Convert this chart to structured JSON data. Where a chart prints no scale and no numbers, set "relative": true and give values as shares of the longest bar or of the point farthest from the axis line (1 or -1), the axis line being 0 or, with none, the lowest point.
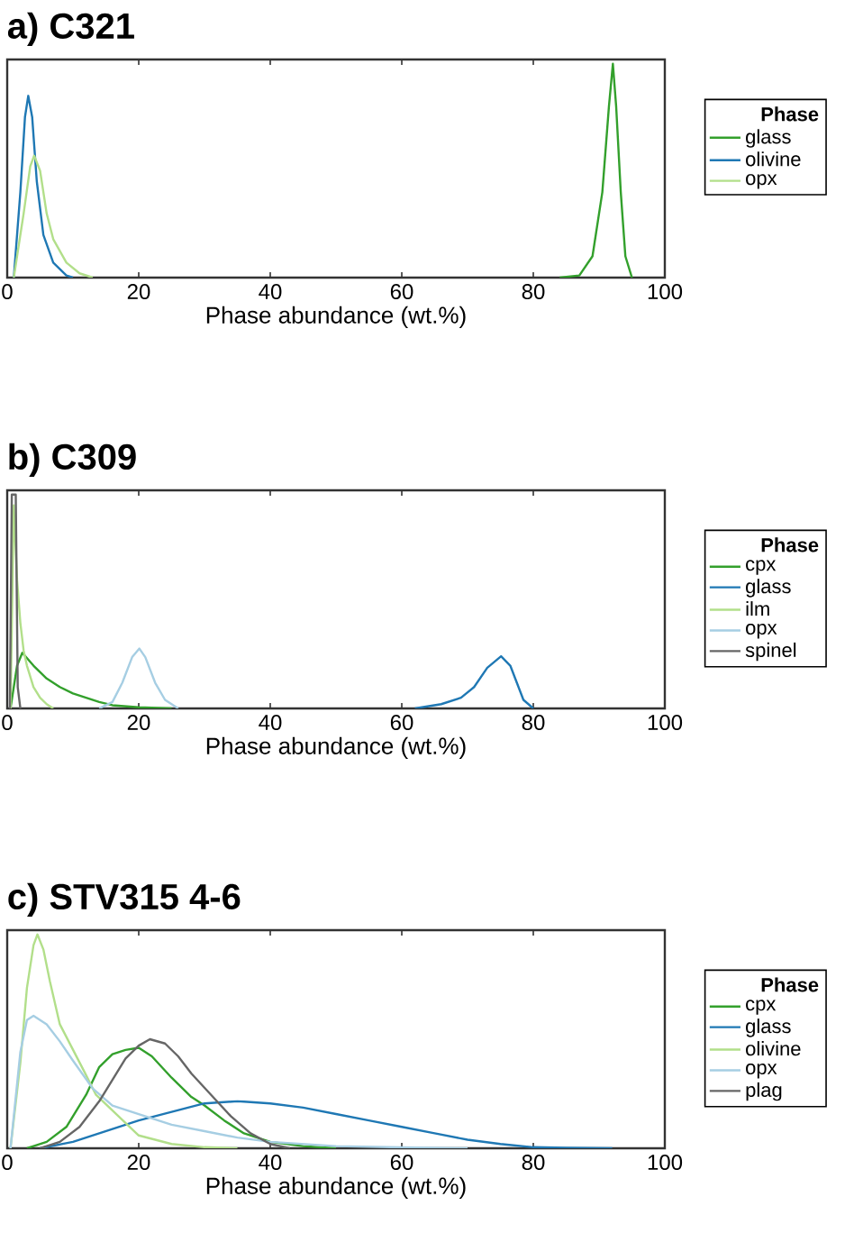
{
  "chart_data": [
    {
      "type": "line",
      "title": "a)  C321",
      "xlabel": "Phase abundance (wt.%)",
      "relative": true,
      "xlim": [
        0,
        100
      ],
      "xticks": [
        0,
        20,
        40,
        60,
        80,
        100
      ],
      "legend": "right",
      "legend_title": "Phase",
      "series": [
        {
          "name": "glass",
          "color": "#33a02c",
          "x": [
            84,
            87,
            89,
            90.5,
            91.5,
            92.1,
            92.6,
            93.3,
            94,
            95
          ],
          "values": [
            0,
            0.01,
            0.1,
            0.4,
            0.8,
            1,
            0.8,
            0.4,
            0.1,
            0
          ]
        },
        {
          "name": "olivine",
          "color": "#1f78b4",
          "x": [
            1,
            2,
            2.7,
            3.2,
            3.8,
            4.5,
            5.5,
            7,
            9,
            10
          ],
          "values": [
            0,
            0.4,
            0.75,
            0.85,
            0.75,
            0.45,
            0.2,
            0.07,
            0.01,
            0
          ]
        },
        {
          "name": "opx",
          "color": "#b2df8a",
          "x": [
            1,
            2.5,
            3.5,
            4.1,
            5,
            6,
            7,
            9,
            11,
            13
          ],
          "values": [
            0,
            0.3,
            0.52,
            0.57,
            0.5,
            0.3,
            0.18,
            0.07,
            0.02,
            0
          ]
        }
      ]
    },
    {
      "type": "line",
      "title": "b) C309",
      "xlabel": "Phase abundance (wt.%)",
      "relative": true,
      "xlim": [
        0,
        100
      ],
      "xticks": [
        0,
        20,
        40,
        60,
        80,
        100
      ],
      "legend": "right",
      "legend_title": "Phase",
      "series": [
        {
          "name": "cpx",
          "color": "#33a02c",
          "x": [
            0.5,
            1.5,
            2.3,
            4,
            6,
            8,
            10,
            12,
            14,
            16,
            20,
            25
          ],
          "values": [
            0,
            0.2,
            0.26,
            0.2,
            0.14,
            0.1,
            0.07,
            0.05,
            0.03,
            0.015,
            0.005,
            0
          ]
        },
        {
          "name": "glass",
          "color": "#1f78b4",
          "x": [
            62,
            66,
            69,
            71,
            73,
            75.1,
            76.5,
            77.5,
            78.5,
            80
          ],
          "values": [
            0,
            0.02,
            0.05,
            0.1,
            0.19,
            0.244,
            0.2,
            0.12,
            0.04,
            0
          ]
        },
        {
          "name": "ilm",
          "color": "#b2df8a",
          "x": [
            0.5,
            1,
            1.5,
            2,
            2.5,
            3,
            4,
            5,
            6,
            7
          ],
          "values": [
            0,
            0.95,
            0.6,
            0.4,
            0.27,
            0.2,
            0.1,
            0.05,
            0.02,
            0
          ]
        },
        {
          "name": "opx",
          "color": "#a6cee3",
          "x": [
            14,
            16,
            17.5,
            19,
            20.1,
            21,
            22.5,
            24,
            26
          ],
          "values": [
            0,
            0.03,
            0.12,
            0.24,
            0.28,
            0.24,
            0.12,
            0.04,
            0
          ]
        },
        {
          "name": "spinel",
          "color": "#666666",
          "x": [
            0.4,
            0.7,
            1.3,
            1.6,
            2
          ],
          "values": [
            0,
            1,
            1,
            0.1,
            0
          ]
        }
      ]
    },
    {
      "type": "line",
      "title": "c) STV315 4-6",
      "xlabel": "Phase abundance (wt.%)",
      "relative": true,
      "xlim": [
        0,
        100
      ],
      "xticks": [
        0,
        20,
        40,
        60,
        80,
        100
      ],
      "legend": "right",
      "legend_title": "Phase",
      "series": [
        {
          "name": "cpx",
          "color": "#33a02c",
          "x": [
            3,
            6,
            9,
            12,
            14,
            16,
            18,
            20,
            22,
            25,
            28,
            30,
            33,
            36,
            40,
            45,
            50
          ],
          "values": [
            0,
            0.03,
            0.1,
            0.25,
            0.38,
            0.44,
            0.46,
            0.47,
            0.43,
            0.33,
            0.24,
            0.2,
            0.13,
            0.07,
            0.03,
            0.01,
            0
          ]
        },
        {
          "name": "glass",
          "color": "#1f78b4",
          "x": [
            5,
            10,
            15,
            20,
            25,
            30,
            35,
            40,
            45,
            50,
            55,
            60,
            65,
            70,
            75,
            80,
            85,
            92
          ],
          "values": [
            0,
            0.03,
            0.08,
            0.13,
            0.17,
            0.21,
            0.22,
            0.21,
            0.19,
            0.16,
            0.13,
            0.1,
            0.07,
            0.04,
            0.02,
            0.005,
            0.002,
            0
          ]
        },
        {
          "name": "olivine",
          "color": "#b2df8a",
          "x": [
            0.5,
            2,
            3,
            4,
            4.6,
            5.5,
            6.5,
            8,
            11.7,
            13.5,
            20,
            25,
            30,
            35
          ],
          "values": [
            0,
            0.4,
            0.75,
            0.95,
            1,
            0.93,
            0.78,
            0.58,
            0.36,
            0.25,
            0.06,
            0.02,
            0.005,
            0
          ]
        },
        {
          "name": "opx",
          "color": "#a6cee3",
          "x": [
            0.5,
            2,
            3,
            4,
            6,
            8,
            10,
            13,
            16,
            20,
            25,
            30,
            35,
            40,
            50,
            60,
            70
          ],
          "values": [
            0,
            0.45,
            0.6,
            0.62,
            0.58,
            0.5,
            0.41,
            0.28,
            0.2,
            0.16,
            0.11,
            0.08,
            0.05,
            0.03,
            0.01,
            0.004,
            0
          ]
        },
        {
          "name": "plag",
          "color": "#666666",
          "x": [
            5,
            8,
            11,
            14,
            16,
            18,
            20,
            21.7,
            24,
            26,
            28,
            31,
            34,
            37,
            40,
            43
          ],
          "values": [
            0,
            0.03,
            0.1,
            0.22,
            0.32,
            0.42,
            0.48,
            0.51,
            0.49,
            0.43,
            0.35,
            0.25,
            0.15,
            0.07,
            0.02,
            0
          ]
        }
      ]
    }
  ]
}
